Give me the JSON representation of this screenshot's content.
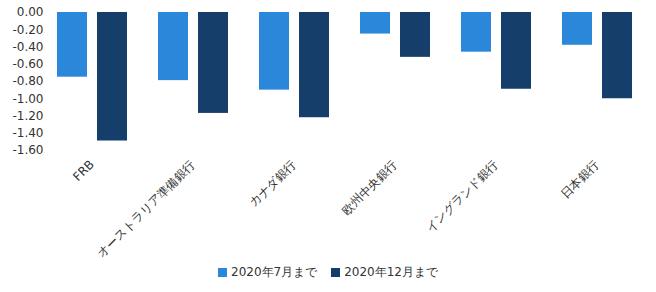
{
  "chart_data": {
    "type": "bar",
    "categories": [
      "FRB",
      "オーストラリア準備銀行",
      "カナダ銀行",
      "欧州中央銀行",
      "イングランド銀行",
      "日本銀行"
    ],
    "series": [
      {
        "name": "2020年7月まで",
        "color": "#2b87d9",
        "values": [
          -0.75,
          -0.79,
          -0.9,
          -0.25,
          -0.46,
          -0.38
        ]
      },
      {
        "name": "2020年12月まで",
        "color": "#163e6b",
        "values": [
          -1.49,
          -1.17,
          -1.22,
          -0.52,
          -0.89,
          -1.0
        ]
      }
    ],
    "ylim": [
      -1.6,
      0
    ],
    "yticks": [
      {
        "value": 0,
        "label": "0.00"
      },
      {
        "value": -0.2,
        "label": "-0.20"
      },
      {
        "value": -0.4,
        "label": "-0.40"
      },
      {
        "value": -0.6,
        "label": "-0.60"
      },
      {
        "value": -0.8,
        "label": "-0.80"
      },
      {
        "value": -1.0,
        "label": "-1.00"
      },
      {
        "value": -1.2,
        "label": "-1.20"
      },
      {
        "value": -1.4,
        "label": "-1.40"
      },
      {
        "value": -1.6,
        "label": "-1.60"
      }
    ],
    "grid": false,
    "legend": "bottom"
  }
}
